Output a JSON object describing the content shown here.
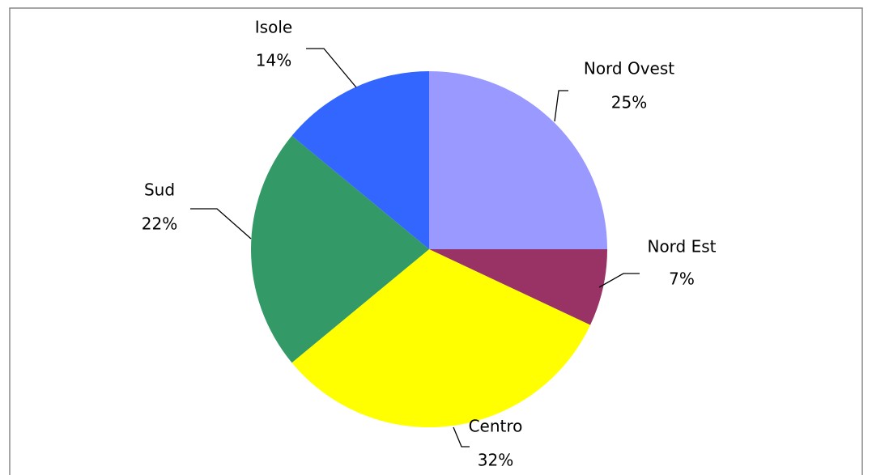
{
  "chart_data": {
    "type": "pie",
    "categories": [
      "Nord Ovest",
      "Nord Est",
      "Centro",
      "Sud",
      "Isole"
    ],
    "values": [
      25,
      7,
      32,
      22,
      14
    ],
    "value_labels": [
      "25%",
      "7%",
      "32%",
      "22%",
      "14%"
    ],
    "colors": [
      "#9999ff",
      "#993366",
      "#ffff00",
      "#339966",
      "#3366ff"
    ]
  }
}
